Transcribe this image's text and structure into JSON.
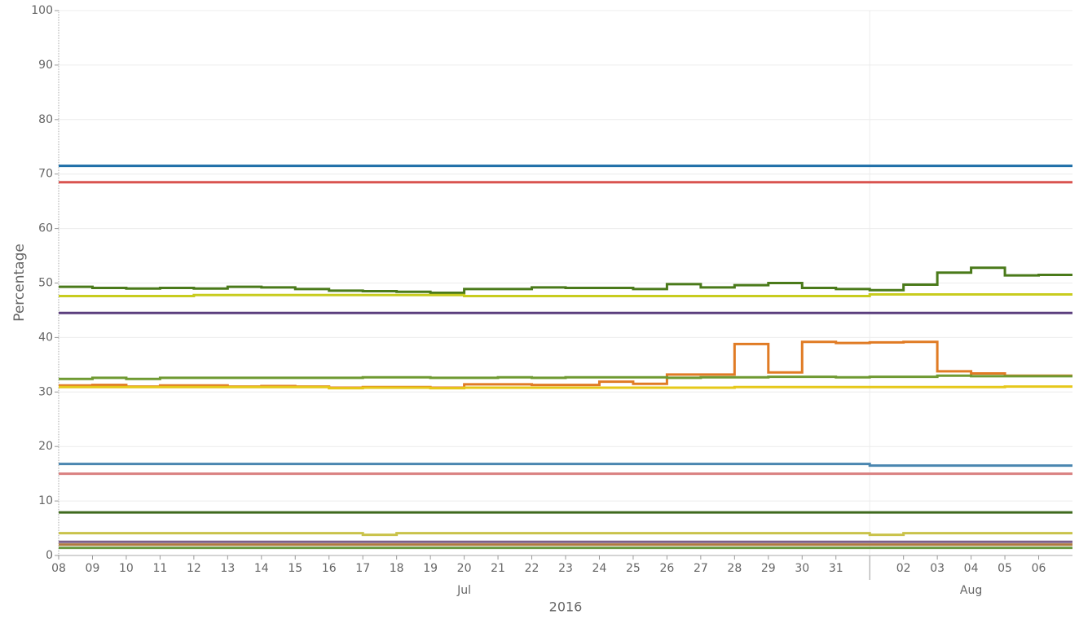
{
  "chart_data": {
    "type": "step-line",
    "y_label": "Percentage",
    "x_label": "2016",
    "x": [
      "2016-07-08",
      "2016-07-09",
      "2016-07-10",
      "2016-07-11",
      "2016-07-12",
      "2016-07-13",
      "2016-07-14",
      "2016-07-15",
      "2016-07-16",
      "2016-07-17",
      "2016-07-18",
      "2016-07-19",
      "2016-07-20",
      "2016-07-21",
      "2016-07-22",
      "2016-07-23",
      "2016-07-24",
      "2016-07-25",
      "2016-07-26",
      "2016-07-27",
      "2016-07-28",
      "2016-07-29",
      "2016-07-30",
      "2016-07-31",
      "2016-08-01",
      "2016-08-02",
      "2016-08-03",
      "2016-08-04",
      "2016-08-05",
      "2016-08-06",
      "2016-08-07"
    ],
    "xlim": [
      "2016-07-08",
      "2016-08-07"
    ],
    "xticks": [
      {
        "value": "2016-07-08",
        "label": "08"
      },
      {
        "value": "2016-07-09",
        "label": "09"
      },
      {
        "value": "2016-07-10",
        "label": "10"
      },
      {
        "value": "2016-07-11",
        "label": "11"
      },
      {
        "value": "2016-07-12",
        "label": "12"
      },
      {
        "value": "2016-07-13",
        "label": "13"
      },
      {
        "value": "2016-07-14",
        "label": "14"
      },
      {
        "value": "2016-07-15",
        "label": "15"
      },
      {
        "value": "2016-07-16",
        "label": "16"
      },
      {
        "value": "2016-07-17",
        "label": "17"
      },
      {
        "value": "2016-07-18",
        "label": "18"
      },
      {
        "value": "2016-07-19",
        "label": "19"
      },
      {
        "value": "2016-07-20",
        "label": "20"
      },
      {
        "value": "2016-07-21",
        "label": "21"
      },
      {
        "value": "2016-07-22",
        "label": "22"
      },
      {
        "value": "2016-07-23",
        "label": "23"
      },
      {
        "value": "2016-07-24",
        "label": "24"
      },
      {
        "value": "2016-07-25",
        "label": "25"
      },
      {
        "value": "2016-07-26",
        "label": "26"
      },
      {
        "value": "2016-07-27",
        "label": "27"
      },
      {
        "value": "2016-07-28",
        "label": "28"
      },
      {
        "value": "2016-07-29",
        "label": "29"
      },
      {
        "value": "2016-07-30",
        "label": "30"
      },
      {
        "value": "2016-07-31",
        "label": "31"
      },
      {
        "value": "2016-08-02",
        "label": "02"
      },
      {
        "value": "2016-08-03",
        "label": "03"
      },
      {
        "value": "2016-08-04",
        "label": "04"
      },
      {
        "value": "2016-08-05",
        "label": "05"
      },
      {
        "value": "2016-08-06",
        "label": "06"
      }
    ],
    "months": [
      {
        "label": "Jul",
        "start": "2016-07-01"
      },
      {
        "label": "Aug",
        "start": "2016-08-01"
      }
    ],
    "ylim": [
      0,
      100
    ],
    "yticks": [
      0,
      10,
      20,
      30,
      40,
      50,
      60,
      70,
      80,
      90,
      100
    ],
    "grid": true,
    "series": [
      {
        "color": "#1f6fa8",
        "values": [
          71.5,
          71.5,
          71.5,
          71.5,
          71.5,
          71.5,
          71.5,
          71.5,
          71.5,
          71.5,
          71.5,
          71.5,
          71.5,
          71.5,
          71.5,
          71.5,
          71.5,
          71.5,
          71.5,
          71.5,
          71.5,
          71.5,
          71.5,
          71.5,
          71.5,
          71.5,
          71.5,
          71.5,
          71.5,
          71.5,
          71.5
        ]
      },
      {
        "color": "#d9534f",
        "values": [
          68.5,
          68.5,
          68.5,
          68.5,
          68.5,
          68.5,
          68.5,
          68.5,
          68.5,
          68.5,
          68.5,
          68.5,
          68.5,
          68.5,
          68.5,
          68.5,
          68.5,
          68.5,
          68.5,
          68.5,
          68.5,
          68.5,
          68.5,
          68.5,
          68.5,
          68.5,
          68.5,
          68.5,
          68.5,
          68.5,
          68.5
        ]
      },
      {
        "color": "#4a7a1a",
        "values": [
          49.3,
          49.1,
          49.0,
          49.1,
          49.0,
          49.3,
          49.2,
          48.9,
          48.6,
          48.5,
          48.4,
          48.2,
          48.9,
          48.9,
          49.2,
          49.1,
          49.1,
          48.9,
          49.8,
          49.2,
          49.6,
          50.0,
          49.1,
          48.9,
          48.7,
          49.7,
          51.9,
          52.8,
          51.4,
          51.5,
          51.5
        ]
      },
      {
        "color": "#c8cc1e",
        "values": [
          47.6,
          47.6,
          47.6,
          47.6,
          47.8,
          47.8,
          47.8,
          47.8,
          47.8,
          47.8,
          47.8,
          47.8,
          47.6,
          47.6,
          47.6,
          47.6,
          47.6,
          47.6,
          47.6,
          47.6,
          47.6,
          47.6,
          47.6,
          47.6,
          47.9,
          47.9,
          47.9,
          47.9,
          47.9,
          47.9,
          47.9
        ]
      },
      {
        "color": "#5b3f7e",
        "values": [
          44.5,
          44.5,
          44.5,
          44.5,
          44.5,
          44.5,
          44.5,
          44.5,
          44.5,
          44.5,
          44.5,
          44.5,
          44.5,
          44.5,
          44.5,
          44.5,
          44.5,
          44.5,
          44.5,
          44.5,
          44.5,
          44.5,
          44.5,
          44.5,
          44.5,
          44.5,
          44.5,
          44.5,
          44.5,
          44.5,
          44.5
        ]
      },
      {
        "color": "#e07b24",
        "values": [
          31.2,
          31.3,
          31.0,
          31.2,
          31.2,
          31.0,
          31.1,
          31.0,
          30.8,
          30.9,
          30.9,
          30.8,
          31.4,
          31.4,
          31.3,
          31.3,
          31.9,
          31.5,
          33.2,
          33.2,
          38.8,
          33.6,
          39.2,
          39.0,
          39.1,
          39.2,
          33.8,
          33.4,
          33.0,
          33.0,
          33.0
        ]
      },
      {
        "color": "#6f9a32",
        "values": [
          32.4,
          32.6,
          32.4,
          32.6,
          32.6,
          32.6,
          32.6,
          32.6,
          32.6,
          32.7,
          32.7,
          32.6,
          32.6,
          32.7,
          32.6,
          32.7,
          32.7,
          32.7,
          32.6,
          32.7,
          32.7,
          32.8,
          32.8,
          32.7,
          32.8,
          32.8,
          33.0,
          32.9,
          32.9,
          32.9,
          32.9
        ]
      },
      {
        "color": "#e6c81a",
        "values": [
          30.9,
          30.9,
          30.9,
          30.9,
          30.9,
          30.9,
          30.9,
          30.9,
          30.7,
          30.8,
          30.8,
          30.7,
          30.8,
          30.8,
          30.8,
          30.8,
          30.8,
          30.8,
          30.8,
          30.8,
          30.9,
          30.9,
          30.9,
          30.9,
          30.9,
          30.9,
          30.9,
          30.9,
          31.0,
          31.0,
          31.0
        ]
      },
      {
        "color": "#4a86b0",
        "values": [
          16.8,
          16.8,
          16.8,
          16.8,
          16.8,
          16.8,
          16.8,
          16.8,
          16.8,
          16.8,
          16.8,
          16.8,
          16.8,
          16.8,
          16.8,
          16.8,
          16.8,
          16.8,
          16.8,
          16.8,
          16.8,
          16.8,
          16.8,
          16.8,
          16.5,
          16.5,
          16.5,
          16.5,
          16.5,
          16.5,
          16.5
        ]
      },
      {
        "color": "#d98080",
        "values": [
          15.0,
          15.0,
          15.0,
          15.0,
          15.0,
          15.0,
          15.0,
          15.0,
          15.0,
          15.0,
          15.0,
          15.0,
          15.0,
          15.0,
          15.0,
          15.0,
          15.0,
          15.0,
          15.0,
          15.0,
          15.0,
          15.0,
          15.0,
          15.0,
          15.0,
          15.0,
          15.0,
          15.0,
          15.0,
          15.0,
          15.0
        ]
      },
      {
        "color": "#3f6a1e",
        "values": [
          7.9,
          7.9,
          7.9,
          7.9,
          7.9,
          7.9,
          7.9,
          7.9,
          7.9,
          7.9,
          7.9,
          7.9,
          7.9,
          7.9,
          7.9,
          7.9,
          7.9,
          7.9,
          7.9,
          7.9,
          7.9,
          7.9,
          7.9,
          7.9,
          7.9,
          7.9,
          7.9,
          7.9,
          7.9,
          7.9,
          7.9
        ]
      },
      {
        "color": "#c9c24a",
        "values": [
          4.1,
          4.1,
          4.1,
          4.1,
          4.1,
          4.1,
          4.1,
          4.1,
          4.1,
          3.8,
          4.1,
          4.1,
          4.1,
          4.1,
          4.1,
          4.1,
          4.1,
          4.1,
          4.1,
          4.1,
          4.1,
          4.1,
          4.1,
          4.1,
          3.8,
          4.1,
          4.1,
          4.1,
          4.1,
          4.1,
          4.1
        ]
      },
      {
        "color": "#7a5f8a",
        "values": [
          2.5,
          2.5,
          2.5,
          2.5,
          2.5,
          2.5,
          2.5,
          2.5,
          2.5,
          2.5,
          2.5,
          2.5,
          2.5,
          2.5,
          2.5,
          2.5,
          2.5,
          2.5,
          2.5,
          2.5,
          2.5,
          2.5,
          2.5,
          2.5,
          2.5,
          2.5,
          2.5,
          2.5,
          2.5,
          2.5,
          2.5
        ]
      },
      {
        "color": "#b07a40",
        "values": [
          2.0,
          2.0,
          2.0,
          2.0,
          2.0,
          2.0,
          2.0,
          2.0,
          2.0,
          2.0,
          2.0,
          2.0,
          2.0,
          2.0,
          2.0,
          2.0,
          2.0,
          2.0,
          2.0,
          2.0,
          2.0,
          2.0,
          2.0,
          2.0,
          2.0,
          2.0,
          2.0,
          2.0,
          2.0,
          2.0,
          2.0
        ]
      },
      {
        "color": "#6a9a40",
        "values": [
          1.4,
          1.4,
          1.4,
          1.4,
          1.4,
          1.4,
          1.4,
          1.4,
          1.4,
          1.4,
          1.4,
          1.4,
          1.4,
          1.4,
          1.4,
          1.4,
          1.4,
          1.4,
          1.4,
          1.4,
          1.4,
          1.4,
          1.4,
          1.4,
          1.4,
          1.4,
          1.4,
          1.4,
          1.4,
          1.4,
          1.4
        ]
      }
    ]
  }
}
